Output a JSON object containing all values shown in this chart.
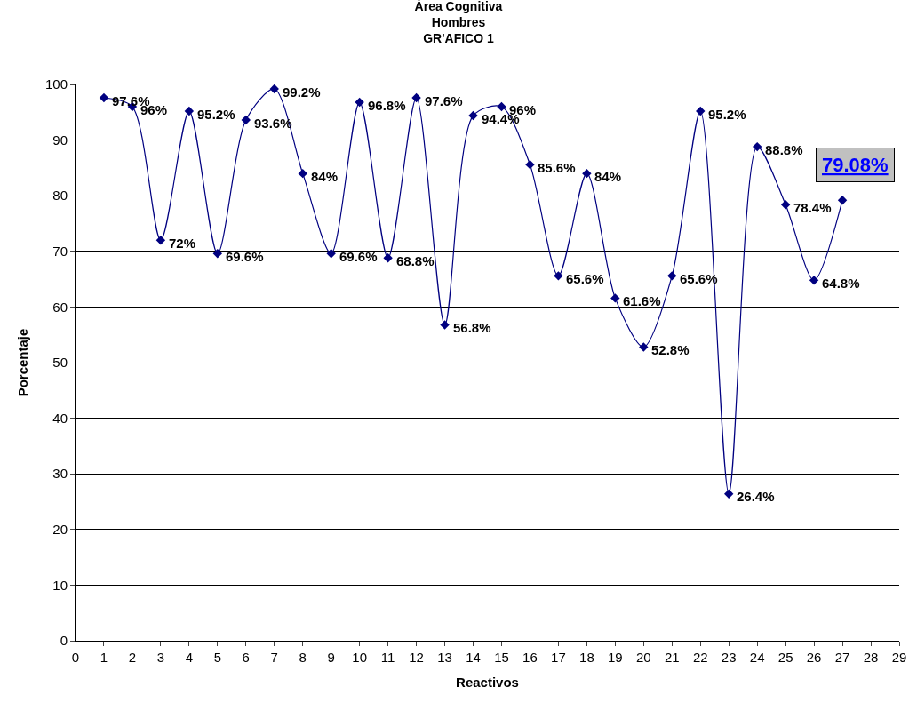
{
  "chart_data": {
    "type": "line",
    "title": "Área Cognitiva\nHombres\nGR'AFICO 1",
    "xlabel": "Reactivos",
    "ylabel": "Porcentaje",
    "x": [
      1,
      2,
      3,
      4,
      5,
      6,
      7,
      8,
      9,
      10,
      11,
      12,
      13,
      14,
      15,
      16,
      17,
      18,
      19,
      20,
      21,
      22,
      23,
      24,
      25,
      26,
      27
    ],
    "series": [
      {
        "color": "#000080",
        "values": [
          97.6,
          96,
          72,
          95.2,
          69.6,
          93.6,
          99.2,
          84,
          69.6,
          96.8,
          68.8,
          97.6,
          56.8,
          94.4,
          96,
          85.6,
          65.6,
          84,
          61.6,
          52.8,
          65.6,
          95.2,
          26.4,
          88.8,
          78.4,
          64.8,
          79.2
        ],
        "value_labels": [
          "97.6%",
          "96%",
          "72%",
          "95.2%",
          "69.6%",
          "93.6%",
          "99.2%",
          "84%",
          "69.6%",
          "96.8%",
          "68.8%",
          "97.6%",
          "56.8%",
          "94.4%",
          "96%",
          "85.6%",
          "65.6%",
          "84%",
          "61.6%",
          "52.8%",
          "65.6%",
          "95.2%",
          "26.4%",
          "88.8%",
          "78.4%",
          "64.8%",
          null
        ]
      }
    ],
    "xlim": [
      0,
      29
    ],
    "xticks": [
      0,
      1,
      2,
      3,
      4,
      5,
      6,
      7,
      8,
      9,
      10,
      11,
      12,
      13,
      14,
      15,
      16,
      17,
      18,
      19,
      20,
      21,
      22,
      23,
      24,
      25,
      26,
      27,
      28,
      29
    ],
    "ylim": [
      0,
      100
    ],
    "yticks": [
      0,
      10,
      20,
      30,
      40,
      50,
      60,
      70,
      80,
      90,
      100
    ],
    "grid": "y",
    "marker": "diamond",
    "line_style": "solid",
    "legend": false,
    "annotations": [
      "79.08%"
    ]
  }
}
